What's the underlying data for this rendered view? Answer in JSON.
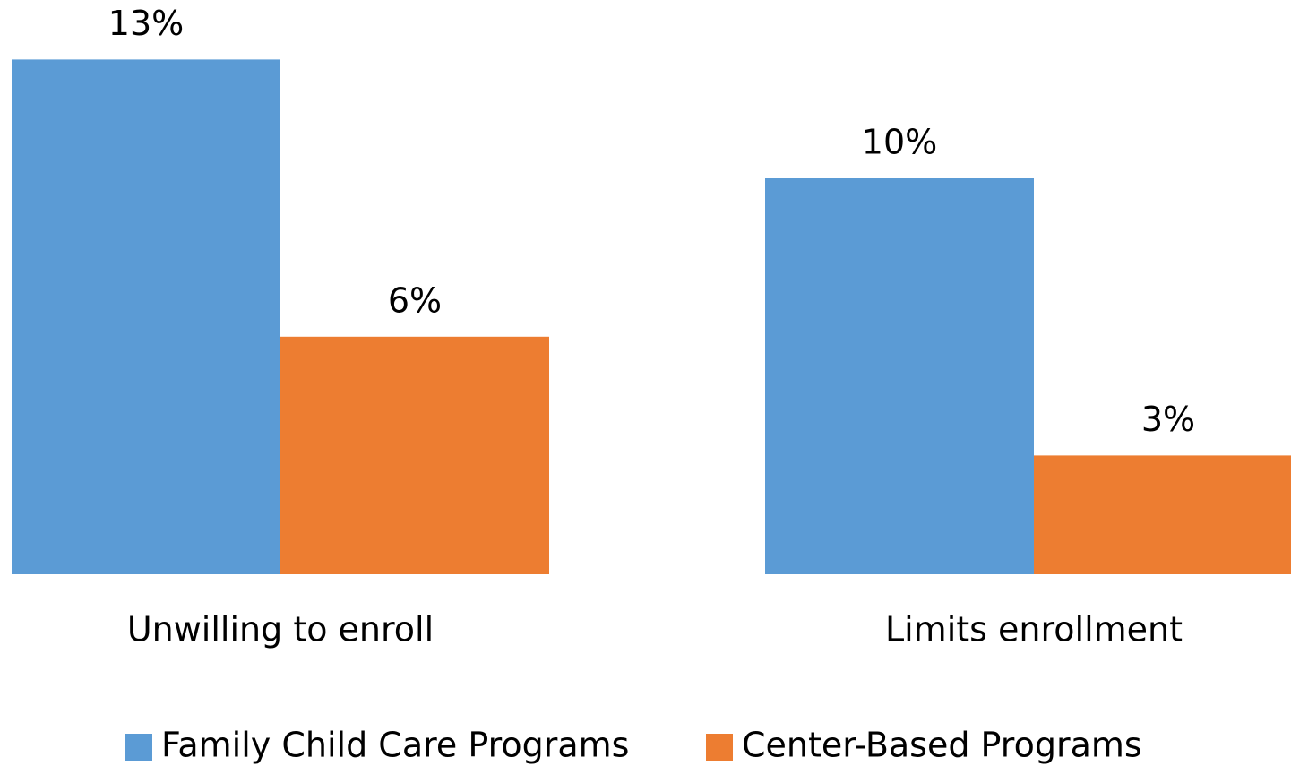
{
  "chart_data": {
    "type": "bar",
    "categories": [
      "Unwilling to enroll",
      "Limits enrollment"
    ],
    "series": [
      {
        "name": "Family Child Care Programs",
        "color": "#5b9bd5",
        "values": [
          13,
          10
        ],
        "value_labels": [
          "13%",
          "10%"
        ]
      },
      {
        "name": "Center-Based Programs",
        "color": "#ed7d31",
        "values": [
          6,
          3
        ],
        "value_labels": [
          "6%",
          "3%"
        ]
      }
    ],
    "legend": "bottom"
  }
}
